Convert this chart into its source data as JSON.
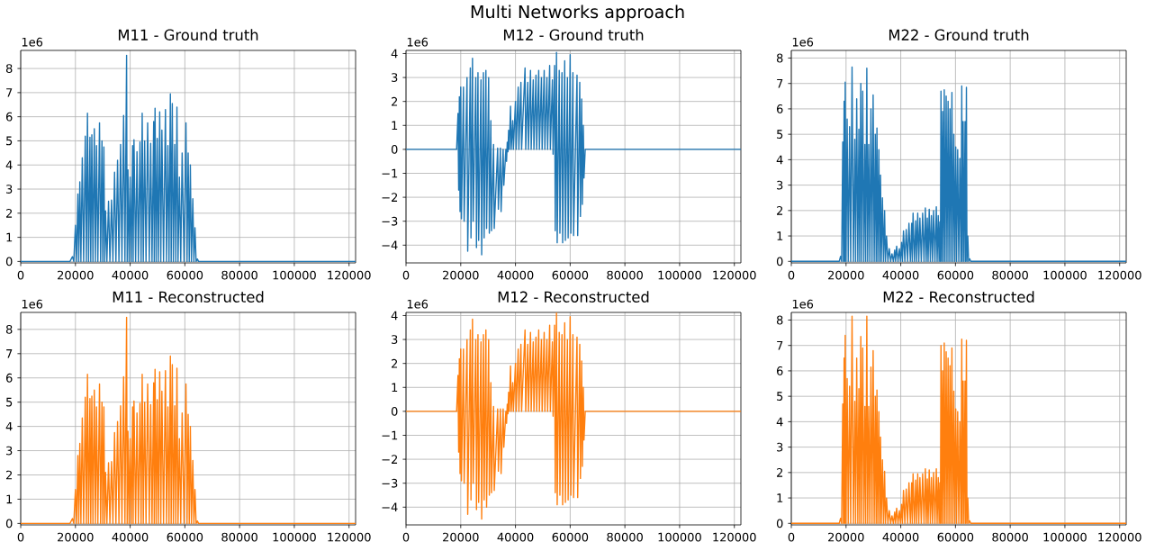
{
  "chart_data": [
    {
      "type": "line",
      "title": "M11 - Ground truth",
      "annotations": [
        "1e6",
        "Multi Networks approach"
      ],
      "color": "#1f77b4",
      "grid": true,
      "x": [
        0,
        18000,
        18900,
        19400,
        20000,
        20400,
        20900,
        21200,
        21600,
        22000,
        22500,
        23000,
        23600,
        24000,
        24400,
        24800,
        25300,
        25600,
        26000,
        26400,
        26900,
        27300,
        27700,
        28200,
        28800,
        29200,
        29700,
        30000,
        30400,
        30700,
        31000,
        31500,
        32100,
        32600,
        33200,
        33700,
        34300,
        34800,
        35400,
        35900,
        36500,
        37000,
        37600,
        38100,
        38700,
        38900,
        39200,
        39600,
        40000,
        40400,
        40900,
        41100,
        41400,
        42000,
        42500,
        43000,
        43600,
        44000,
        44400,
        44800,
        45300,
        45800,
        46400,
        47000,
        47500,
        48000,
        48600,
        48800,
        49100,
        49500,
        49900,
        50300,
        50800,
        51200,
        51600,
        52200,
        52900,
        53300,
        53800,
        54200,
        54700,
        55000,
        55400,
        55800,
        56300,
        56700,
        57100,
        57500,
        58000,
        58500,
        59000,
        59700,
        60400,
        60800,
        61200,
        61600,
        62000,
        62400,
        62900,
        63300,
        63700,
        64100,
        64600,
        65000,
        122400
      ],
      "values": [
        0,
        0,
        0.2,
        0,
        1.5,
        0,
        2.8,
        0,
        3.3,
        0,
        4.3,
        0,
        5.2,
        0,
        6.15,
        0,
        5.15,
        0,
        5.25,
        0,
        5.5,
        0,
        4.8,
        0,
        5.75,
        0,
        5.0,
        0,
        4.75,
        0,
        2.1,
        0,
        2.5,
        0,
        2.55,
        0,
        3.7,
        0,
        4.2,
        0,
        4.85,
        0,
        6.05,
        0,
        8.55,
        0,
        3.8,
        0,
        3.5,
        0,
        4.8,
        0,
        5.05,
        0,
        4.55,
        0,
        4.95,
        0,
        6.15,
        0,
        5.0,
        0,
        5.75,
        0,
        4.9,
        0,
        5.8,
        0,
        6.35,
        0,
        5.1,
        0,
        6.2,
        0,
        5.45,
        0,
        6.3,
        0,
        4.8,
        0,
        6.95,
        0,
        6.55,
        0,
        4.85,
        0,
        6.4,
        0,
        3.5,
        0,
        4.5,
        0,
        5.75,
        0,
        4.5,
        0,
        4.0,
        0,
        2.6,
        0,
        1.4,
        0,
        0.1,
        0,
        0
      ],
      "xlim": [
        0,
        122400
      ],
      "ylim": [
        -0.06,
        8.75
      ],
      "xticks": [
        0,
        20000,
        40000,
        60000,
        80000,
        100000,
        120000
      ],
      "yticks": [
        0,
        1,
        2,
        3,
        4,
        5,
        6,
        7,
        8
      ]
    },
    {
      "type": "line",
      "title": "M12 - Ground truth",
      "annotations": [
        "1e6"
      ],
      "color": "#1f77b4",
      "grid": true,
      "x": [
        0,
        18500,
        19000,
        19250,
        19500,
        19750,
        20000,
        20250,
        21000,
        21250,
        22300,
        22550,
        23500,
        23750,
        24300,
        24550,
        25500,
        25750,
        26300,
        26550,
        27400,
        27650,
        28300,
        28550,
        29200,
        29450,
        30200,
        30450,
        31000,
        31250,
        32000,
        32250,
        33500,
        33750,
        34500,
        34750,
        35500,
        35750,
        36500,
        36750,
        37000,
        37250,
        37500,
        37750,
        38200,
        38450,
        39000,
        39250,
        40000,
        40250,
        41000,
        41250,
        42000,
        42250,
        43500,
        43750,
        44500,
        44750,
        45500,
        45750,
        46500,
        46750,
        47500,
        47750,
        48500,
        48750,
        49500,
        49750,
        50500,
        50750,
        51500,
        51750,
        52500,
        52750,
        53500,
        53750,
        54300,
        54550,
        55000,
        55250,
        56000,
        56250,
        57000,
        57250,
        58000,
        58250,
        59000,
        59250,
        60000,
        60250,
        61000,
        61250,
        62500,
        62750,
        63500,
        63750,
        64200,
        64450,
        64800,
        65050,
        65500,
        122400
      ],
      "values": [
        0,
        0,
        1.5,
        -1.7,
        2.2,
        -2.6,
        2.6,
        -2.9,
        2.6,
        -3.0,
        3.0,
        -4.25,
        3.4,
        -3.7,
        3.8,
        -3.0,
        3.0,
        -4.1,
        3.2,
        -3.8,
        2.9,
        -4.4,
        3.2,
        -3.7,
        3.3,
        -3.3,
        3.0,
        -3.5,
        1.2,
        -3.4,
        0.2,
        -3.3,
        0.05,
        -2.5,
        0.05,
        -2.6,
        0,
        -1.5,
        0,
        -0.5,
        0.3,
        -0.1,
        0.8,
        0,
        1.8,
        0,
        1.2,
        0,
        2.0,
        0,
        2.6,
        0,
        2.8,
        0,
        3.4,
        0,
        2.8,
        0,
        3.3,
        0,
        2.9,
        0,
        3.1,
        0,
        3.3,
        0,
        3.0,
        0,
        3.3,
        0,
        3.0,
        0,
        3.5,
        0,
        2.9,
        -0.2,
        3.5,
        -3.4,
        4.05,
        -3.9,
        3.3,
        -3.5,
        3.2,
        -3.9,
        3.7,
        -3.8,
        3.0,
        -3.7,
        3.95,
        -3.5,
        3.2,
        -3.6,
        3.1,
        -3.6,
        2.8,
        -2.8,
        2.1,
        -2.3,
        1.0,
        -1.2,
        0,
        0
      ],
      "xlim": [
        0,
        122400
      ],
      "ylim": [
        -4.74,
        4.13
      ],
      "xticks": [
        0,
        20000,
        40000,
        60000,
        80000,
        100000,
        120000
      ],
      "yticks": [
        {
          "value": -4,
          "label": "−4"
        },
        {
          "value": -3,
          "label": "−3"
        },
        {
          "value": -2,
          "label": "−2"
        },
        {
          "value": -1,
          "label": "−1"
        },
        0,
        1,
        2,
        3,
        4
      ]
    },
    {
      "type": "line",
      "title": "M22 - Ground truth",
      "annotations": [
        "1e6"
      ],
      "color": "#1f77b4",
      "grid": true,
      "x": [
        0,
        17500,
        18000,
        18400,
        18800,
        19050,
        19300,
        19500,
        19700,
        20000,
        20400,
        20800,
        21300,
        21700,
        22200,
        22700,
        23200,
        23500,
        23900,
        24300,
        24700,
        25000,
        25400,
        25700,
        26100,
        26500,
        26900,
        27200,
        27600,
        27900,
        28300,
        28700,
        29100,
        29500,
        29900,
        30300,
        30700,
        31000,
        31300,
        31600,
        32000,
        32300,
        32600,
        32900,
        33300,
        33700,
        34100,
        34400,
        34800,
        35300,
        35800,
        36300,
        36800,
        37300,
        37800,
        38100,
        38500,
        39000,
        39500,
        39900,
        40300,
        40600,
        41000,
        41500,
        42000,
        42500,
        43000,
        43500,
        44000,
        44200,
        44500,
        45000,
        45500,
        45800,
        46200,
        46600,
        47000,
        47500,
        48000,
        48500,
        49000,
        49300,
        49700,
        50000,
        50400,
        50800,
        51200,
        51600,
        52000,
        52500,
        53000,
        53300,
        53700,
        54000,
        54300,
        54500,
        54700,
        55000,
        55300,
        55600,
        55900,
        56200,
        56600,
        56900,
        57300,
        57600,
        58000,
        58300,
        58700,
        59000,
        59400,
        59700,
        60100,
        60400,
        60800,
        61200,
        61600,
        62000,
        62300,
        62500,
        62800,
        63100,
        63500,
        63700,
        64000,
        64200,
        64500,
        64800,
        65200,
        65600,
        122400
      ],
      "values": [
        0,
        0,
        0.2,
        0,
        4.7,
        0,
        6.3,
        0,
        7.05,
        0,
        5.6,
        0,
        5.3,
        0,
        7.65,
        0,
        4.8,
        0,
        6.4,
        0,
        5.2,
        0,
        7.0,
        0,
        6.7,
        0,
        4.6,
        0,
        7.6,
        0,
        4.6,
        0,
        6.0,
        0,
        6.55,
        0,
        5.0,
        0,
        5.25,
        0,
        4.4,
        0,
        3.4,
        0,
        2.5,
        0,
        2.0,
        0,
        1.0,
        0,
        0.5,
        0,
        0.3,
        0,
        0.45,
        0,
        0.6,
        0,
        0.5,
        0,
        0.75,
        0,
        1.2,
        0,
        1.25,
        0,
        1.5,
        0,
        1.5,
        0,
        1.9,
        0,
        1.6,
        0,
        1.9,
        0,
        1.7,
        0,
        1.9,
        0,
        2.1,
        0,
        1.7,
        0,
        2.05,
        0,
        1.8,
        0,
        2.0,
        0,
        2.15,
        0,
        1.8,
        0,
        1.55,
        0,
        6.7,
        0,
        5.9,
        0,
        6.75,
        0,
        6.5,
        0,
        6.3,
        0,
        6.0,
        0,
        6.65,
        0,
        5.0,
        0,
        4.5,
        0,
        4.4,
        0,
        4.05,
        0,
        6.9,
        0,
        5.5,
        0,
        5.5,
        0,
        6.85,
        0,
        1.0,
        0,
        0.1,
        0,
        0
      ],
      "xlim": [
        0,
        122400
      ],
      "ylim": [
        -0.06,
        8.3
      ],
      "xticks": [
        0,
        20000,
        40000,
        60000,
        80000,
        100000,
        120000
      ],
      "yticks": [
        0,
        1,
        2,
        3,
        4,
        5,
        6,
        7,
        8
      ]
    },
    {
      "type": "line",
      "title": "M11 - Reconstructed",
      "annotations": [
        "1e6"
      ],
      "color": "#ff7f0e",
      "grid": true,
      "x": [
        0,
        18000,
        18900,
        19400,
        20000,
        20400,
        20900,
        21200,
        21600,
        22000,
        22500,
        23000,
        23600,
        24000,
        24400,
        24800,
        25300,
        25600,
        26000,
        26400,
        26900,
        27300,
        27700,
        28200,
        28800,
        29200,
        29700,
        30000,
        30400,
        30700,
        31000,
        31500,
        32100,
        32600,
        33200,
        33700,
        34300,
        34800,
        35400,
        35900,
        36500,
        37000,
        37600,
        38100,
        38700,
        38900,
        39200,
        39600,
        40000,
        40400,
        40900,
        41100,
        41400,
        42000,
        42500,
        43000,
        43600,
        44000,
        44400,
        44800,
        45300,
        45800,
        46400,
        47000,
        47500,
        48000,
        48600,
        48800,
        49100,
        49500,
        49900,
        50300,
        50800,
        51200,
        51600,
        52200,
        52900,
        53300,
        53800,
        54200,
        54700,
        55000,
        55400,
        55800,
        56300,
        56700,
        57100,
        57500,
        58000,
        58500,
        59000,
        59700,
        60400,
        60800,
        61200,
        61600,
        62000,
        62400,
        62900,
        63300,
        63700,
        64100,
        64600,
        65000,
        122400
      ],
      "values": [
        0,
        0,
        0.2,
        0,
        1.4,
        0,
        2.8,
        0,
        3.3,
        0,
        4.35,
        0,
        5.2,
        0,
        6.15,
        0,
        5.15,
        0,
        5.25,
        0,
        5.5,
        0,
        4.8,
        0,
        5.75,
        0,
        5.0,
        0,
        4.8,
        0,
        2.1,
        0,
        2.5,
        0,
        2.55,
        0,
        3.75,
        0,
        4.2,
        0,
        4.85,
        0,
        6.05,
        0,
        8.5,
        0,
        3.8,
        0,
        3.5,
        0,
        4.8,
        0,
        5.05,
        0,
        4.55,
        0,
        4.95,
        0,
        6.15,
        0,
        5.0,
        0,
        5.75,
        0,
        4.9,
        0,
        5.8,
        0,
        6.35,
        0,
        5.1,
        0,
        6.25,
        0,
        5.45,
        0,
        6.3,
        0,
        4.8,
        0,
        6.9,
        0,
        6.55,
        0,
        4.85,
        0,
        6.4,
        0,
        3.5,
        0,
        4.55,
        0,
        5.75,
        0,
        4.5,
        0,
        4.0,
        0,
        2.6,
        0,
        1.4,
        0,
        0.1,
        0,
        0
      ],
      "xlim": [
        0,
        122400
      ],
      "ylim": [
        -0.06,
        8.7
      ],
      "xticks": [
        0,
        20000,
        40000,
        60000,
        80000,
        100000,
        120000
      ],
      "yticks": [
        0,
        1,
        2,
        3,
        4,
        5,
        6,
        7,
        8
      ]
    },
    {
      "type": "line",
      "title": "M12 - Reconstructed",
      "annotations": [
        "1e6"
      ],
      "color": "#ff7f0e",
      "grid": true,
      "x": [
        0,
        18500,
        19000,
        19250,
        19500,
        19750,
        20000,
        20250,
        21000,
        21250,
        22300,
        22550,
        23500,
        23750,
        24300,
        24550,
        25500,
        25750,
        26300,
        26550,
        27400,
        27650,
        28300,
        28550,
        29200,
        29450,
        30200,
        30450,
        31000,
        31250,
        32000,
        32250,
        33500,
        33750,
        34500,
        34750,
        35500,
        35750,
        36500,
        36750,
        37000,
        37250,
        37500,
        37750,
        38200,
        38450,
        39000,
        39250,
        40000,
        40250,
        41000,
        41250,
        42000,
        42250,
        43500,
        43750,
        44500,
        44750,
        45500,
        45750,
        46500,
        46750,
        47500,
        47750,
        48500,
        48750,
        49500,
        49750,
        50500,
        50750,
        51500,
        51750,
        52500,
        52750,
        53500,
        53750,
        54300,
        54550,
        55000,
        55250,
        56000,
        56250,
        57000,
        57250,
        58000,
        58250,
        59000,
        59250,
        60000,
        60250,
        61000,
        61250,
        62500,
        62750,
        63500,
        63750,
        64200,
        64450,
        64800,
        65050,
        65500,
        122400
      ],
      "values": [
        0,
        0,
        1.5,
        -1.7,
        2.2,
        -2.6,
        2.6,
        -2.9,
        2.6,
        -3.0,
        3.0,
        -4.3,
        3.4,
        -3.7,
        3.85,
        -3.0,
        3.0,
        -4.1,
        3.2,
        -3.8,
        2.9,
        -4.5,
        3.2,
        -3.7,
        3.4,
        -4.0,
        3.0,
        -3.5,
        1.2,
        -3.4,
        0.2,
        -3.3,
        0.1,
        -2.5,
        0.1,
        -2.6,
        0.1,
        -1.5,
        0,
        -0.5,
        0.3,
        -0.1,
        0.8,
        0,
        1.9,
        0,
        1.2,
        0,
        2.0,
        0,
        2.6,
        0,
        2.8,
        0,
        3.4,
        0,
        2.8,
        0,
        3.3,
        0,
        2.9,
        0,
        3.1,
        0,
        3.4,
        0,
        3.0,
        0,
        3.3,
        0,
        3.0,
        0,
        3.6,
        0,
        2.9,
        -0.2,
        3.6,
        -3.4,
        4.1,
        -3.9,
        3.3,
        -3.5,
        3.2,
        -3.9,
        3.7,
        -3.8,
        3.0,
        -3.7,
        3.95,
        -3.5,
        3.2,
        -3.6,
        3.1,
        -3.6,
        2.8,
        -2.8,
        2.1,
        -2.3,
        1.0,
        -1.2,
        0,
        0
      ],
      "xlim": [
        0,
        122400
      ],
      "ylim": [
        -4.74,
        4.13
      ],
      "xticks": [
        0,
        20000,
        40000,
        60000,
        80000,
        100000,
        120000
      ],
      "yticks": [
        {
          "value": -4,
          "label": "−4"
        },
        {
          "value": -3,
          "label": "−3"
        },
        {
          "value": -2,
          "label": "−2"
        },
        {
          "value": -1,
          "label": "−1"
        },
        0,
        1,
        2,
        3,
        4
      ]
    },
    {
      "type": "line",
      "title": "M22 - Reconstructed",
      "annotations": [
        "1e6"
      ],
      "color": "#ff7f0e",
      "grid": true,
      "x": [
        0,
        17500,
        18000,
        18400,
        18800,
        19050,
        19300,
        19500,
        19700,
        20000,
        20400,
        20800,
        21300,
        21700,
        22200,
        22700,
        23200,
        23500,
        23900,
        24300,
        24700,
        25000,
        25400,
        25700,
        26100,
        26500,
        26900,
        27200,
        27600,
        27900,
        28300,
        28700,
        29100,
        29500,
        29900,
        30300,
        30700,
        31000,
        31300,
        31600,
        32000,
        32300,
        32600,
        32900,
        33300,
        33700,
        34100,
        34400,
        34800,
        35300,
        35800,
        36300,
        36800,
        37300,
        37800,
        38100,
        38500,
        39000,
        39500,
        39900,
        40300,
        40600,
        41000,
        41500,
        42000,
        42500,
        43000,
        43500,
        44000,
        44200,
        44500,
        45000,
        45500,
        45800,
        46200,
        46600,
        47000,
        47500,
        48000,
        48500,
        49000,
        49300,
        49700,
        50000,
        50400,
        50800,
        51200,
        51600,
        52000,
        52500,
        53000,
        53300,
        53700,
        54000,
        54300,
        54500,
        54700,
        55000,
        55300,
        55600,
        55900,
        56200,
        56600,
        56900,
        57300,
        57600,
        58000,
        58300,
        58700,
        59000,
        59400,
        59700,
        60100,
        60400,
        60800,
        61200,
        61600,
        62000,
        62300,
        62500,
        62800,
        63100,
        63500,
        63700,
        64000,
        64200,
        64500,
        64800,
        65200,
        65600,
        122400
      ],
      "values": [
        0,
        0,
        0.2,
        0,
        4.7,
        0,
        6.5,
        0,
        7.4,
        0,
        5.7,
        0,
        5.4,
        0,
        8.15,
        0,
        4.8,
        0,
        6.5,
        0,
        5.3,
        0,
        7.35,
        0,
        6.9,
        0,
        4.6,
        0,
        8.15,
        0,
        4.6,
        0,
        6.15,
        0,
        6.8,
        0,
        5.0,
        0,
        5.25,
        0,
        4.4,
        0,
        3.4,
        0,
        2.5,
        0,
        2.05,
        0,
        1.0,
        0,
        0.5,
        0,
        0.3,
        0,
        0.45,
        0,
        0.6,
        0,
        0.5,
        0,
        0.75,
        0,
        1.3,
        0,
        1.35,
        0,
        1.6,
        0,
        1.6,
        0,
        1.95,
        0,
        1.7,
        0,
        1.95,
        0,
        1.8,
        0,
        1.95,
        0,
        2.15,
        0,
        1.75,
        0,
        2.1,
        0,
        1.8,
        0,
        2.0,
        0,
        2.15,
        0,
        1.8,
        0,
        1.6,
        0,
        7.0,
        0,
        6.0,
        0,
        7.1,
        0,
        6.75,
        0,
        6.5,
        0,
        6.2,
        0,
        6.9,
        0,
        5.2,
        0,
        4.5,
        0,
        4.4,
        0,
        4.0,
        0,
        7.25,
        0,
        5.6,
        0,
        5.6,
        0,
        7.2,
        0,
        1.0,
        0,
        0.1,
        0,
        0
      ],
      "xlim": [
        0,
        122400
      ],
      "ylim": [
        -0.06,
        8.3
      ],
      "xticks": [
        0,
        20000,
        40000,
        60000,
        80000,
        100000,
        120000
      ],
      "yticks": [
        0,
        1,
        2,
        3,
        4,
        5,
        6,
        7,
        8
      ]
    }
  ]
}
